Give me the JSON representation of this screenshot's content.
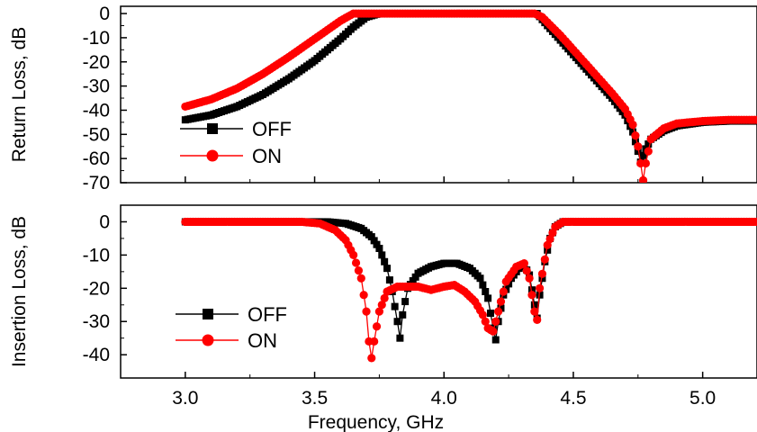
{
  "chart_data": [
    {
      "type": "line",
      "ylabel": "Return Loss, dB",
      "xlim": [
        2.75,
        5.21
      ],
      "ylim": [
        -70,
        3
      ],
      "yticks": [
        0,
        -10,
        -20,
        -30,
        -40,
        -50,
        -60,
        -70
      ],
      "grid": false,
      "legend_position": "left",
      "series": [
        {
          "name": "OFF",
          "color": "#000000",
          "marker": "square",
          "points": [
            [
              3.0,
              -44
            ],
            [
              3.1,
              -42
            ],
            [
              3.2,
              -38.5
            ],
            [
              3.3,
              -33.5
            ],
            [
              3.4,
              -27
            ],
            [
              3.5,
              -19.5
            ],
            [
              3.6,
              -10.5
            ],
            [
              3.65,
              -5.5
            ],
            [
              3.7,
              -1.5
            ],
            [
              3.75,
              0
            ],
            [
              4.3,
              0
            ],
            [
              4.36,
              0
            ],
            [
              4.4,
              -5
            ],
            [
              4.45,
              -11
            ],
            [
              4.5,
              -17
            ],
            [
              4.55,
              -23
            ],
            [
              4.6,
              -29
            ],
            [
              4.65,
              -35
            ],
            [
              4.7,
              -42
            ],
            [
              4.73,
              -49
            ],
            [
              4.75,
              -57
            ],
            [
              4.76,
              -61.5
            ],
            [
              4.78,
              -56
            ],
            [
              4.8,
              -52
            ],
            [
              4.85,
              -48.5
            ],
            [
              4.9,
              -46.5
            ],
            [
              5.0,
              -45
            ],
            [
              5.1,
              -44.5
            ],
            [
              5.21,
              -44.5
            ]
          ]
        },
        {
          "name": "ON",
          "color": "#ff0000",
          "marker": "circle",
          "points": [
            [
              3.0,
              -38.5
            ],
            [
              3.1,
              -35.5
            ],
            [
              3.2,
              -31
            ],
            [
              3.3,
              -25
            ],
            [
              3.4,
              -18
            ],
            [
              3.5,
              -10.5
            ],
            [
              3.6,
              -3
            ],
            [
              3.65,
              0
            ],
            [
              4.35,
              0
            ],
            [
              4.38,
              -1.5
            ],
            [
              4.45,
              -9
            ],
            [
              4.5,
              -15
            ],
            [
              4.55,
              -21
            ],
            [
              4.6,
              -27
            ],
            [
              4.65,
              -33
            ],
            [
              4.7,
              -39.5
            ],
            [
              4.73,
              -46
            ],
            [
              4.75,
              -55
            ],
            [
              4.76,
              -62
            ],
            [
              4.77,
              -69
            ],
            [
              4.78,
              -62
            ],
            [
              4.8,
              -52
            ],
            [
              4.85,
              -47.5
            ],
            [
              4.9,
              -45.5
            ],
            [
              5.0,
              -44.5
            ],
            [
              5.1,
              -44
            ],
            [
              5.21,
              -44
            ]
          ]
        }
      ]
    },
    {
      "type": "line",
      "ylabel": "Insertion Loss, dB",
      "xlabel": "Frequency, GHz",
      "xlim": [
        2.75,
        5.21
      ],
      "ylim": [
        -47,
        5
      ],
      "xticks": [
        "3.0",
        "3.5",
        "4.0",
        "4.5",
        "5.0"
      ],
      "yticks": [
        0,
        -10,
        -20,
        -30,
        -40
      ],
      "grid": false,
      "legend_position": "bottom-left",
      "series": [
        {
          "name": "OFF",
          "color": "#000000",
          "marker": "square",
          "points": [
            [
              3.0,
              0
            ],
            [
              3.55,
              0
            ],
            [
              3.62,
              -0.5
            ],
            [
              3.68,
              -2
            ],
            [
              3.72,
              -4.5
            ],
            [
              3.75,
              -8
            ],
            [
              3.78,
              -14
            ],
            [
              3.8,
              -21
            ],
            [
              3.82,
              -30
            ],
            [
              3.83,
              -35
            ],
            [
              3.84,
              -28
            ],
            [
              3.86,
              -20
            ],
            [
              3.9,
              -15.5
            ],
            [
              3.95,
              -13.5
            ],
            [
              4.0,
              -12.5
            ],
            [
              4.05,
              -12.5
            ],
            [
              4.1,
              -14
            ],
            [
              4.14,
              -17
            ],
            [
              4.17,
              -23
            ],
            [
              4.19,
              -32
            ],
            [
              4.2,
              -35.5
            ],
            [
              4.21,
              -30
            ],
            [
              4.23,
              -22
            ],
            [
              4.26,
              -17
            ],
            [
              4.29,
              -14
            ],
            [
              4.31,
              -13
            ],
            [
              4.33,
              -16
            ],
            [
              4.35,
              -25
            ],
            [
              4.36,
              -29
            ],
            [
              4.37,
              -22
            ],
            [
              4.39,
              -12
            ],
            [
              4.41,
              -5
            ],
            [
              4.43,
              -1.5
            ],
            [
              4.46,
              0
            ],
            [
              5.21,
              0
            ]
          ]
        },
        {
          "name": "ON",
          "color": "#ff0000",
          "marker": "circle",
          "points": [
            [
              3.0,
              0
            ],
            [
              3.45,
              0
            ],
            [
              3.52,
              -0.5
            ],
            [
              3.58,
              -2.5
            ],
            [
              3.62,
              -5.5
            ],
            [
              3.65,
              -10
            ],
            [
              3.68,
              -17
            ],
            [
              3.7,
              -27
            ],
            [
              3.71,
              -36
            ],
            [
              3.72,
              -41
            ],
            [
              3.73,
              -36
            ],
            [
              3.75,
              -27
            ],
            [
              3.78,
              -21
            ],
            [
              3.82,
              -19.5
            ],
            [
              3.9,
              -19.5
            ],
            [
              3.95,
              -20.5
            ],
            [
              4.0,
              -19.5
            ],
            [
              4.04,
              -19
            ],
            [
              4.08,
              -21
            ],
            [
              4.12,
              -24
            ],
            [
              4.15,
              -28
            ],
            [
              4.17,
              -32
            ],
            [
              4.19,
              -33
            ],
            [
              4.21,
              -27
            ],
            [
              4.24,
              -18
            ],
            [
              4.28,
              -13.5
            ],
            [
              4.31,
              -12.5
            ],
            [
              4.33,
              -17
            ],
            [
              4.35,
              -27
            ],
            [
              4.36,
              -29.5
            ],
            [
              4.37,
              -20
            ],
            [
              4.4,
              -7
            ],
            [
              4.43,
              -1.5
            ],
            [
              4.46,
              0
            ],
            [
              5.21,
              0
            ]
          ]
        }
      ]
    }
  ]
}
